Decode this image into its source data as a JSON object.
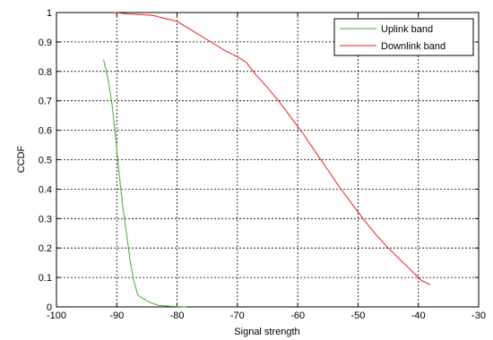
{
  "chart_data": {
    "type": "line",
    "title": "",
    "xlabel": "Signal strength",
    "ylabel": "CCDF",
    "xlim": [
      -100,
      -30
    ],
    "ylim": [
      0,
      1
    ],
    "xticks": [
      -100,
      -90,
      -80,
      -70,
      -60,
      -50,
      -40,
      -30
    ],
    "yticks": [
      0,
      0.1,
      0.2,
      0.3,
      0.4,
      0.5,
      0.6,
      0.7,
      0.8,
      0.9,
      1
    ],
    "xtick_labels": [
      "-100",
      "-90",
      "-80",
      "-70",
      "-60",
      "-50",
      "-40",
      "-30"
    ],
    "ytick_labels": [
      "0",
      "0.1",
      "0.2",
      "0.3",
      "0.4",
      "0.5",
      "0.6",
      "0.7",
      "0.8",
      "0.9",
      "1"
    ],
    "grid": true,
    "legend_position": "top-right",
    "series": [
      {
        "name": "Uplink band",
        "color": "#3fae2a",
        "x": [
          -92.2,
          -91.5,
          -90.8,
          -90.2,
          -89.6,
          -89.0,
          -88.4,
          -87.8,
          -87.2,
          -86.5,
          -85.8,
          -84.5,
          -83.0,
          -81.0,
          -78.5
        ],
        "y": [
          0.84,
          0.78,
          0.69,
          0.58,
          0.45,
          0.34,
          0.25,
          0.16,
          0.09,
          0.04,
          0.03,
          0.015,
          0.005,
          0.002,
          0.0
        ]
      },
      {
        "name": "Downlink band",
        "color": "#e8201e",
        "x": [
          -90.5,
          -88.0,
          -86.0,
          -84.0,
          -82.0,
          -80.0,
          -78.0,
          -76.0,
          -74.0,
          -72.0,
          -70.0,
          -68.5,
          -67.0,
          -65.0,
          -63.0,
          -61.0,
          -59.0,
          -57.0,
          -55.0,
          -53.0,
          -51.0,
          -49.0,
          -47.0,
          -45.0,
          -43.0,
          -41.0,
          -39.5,
          -38.0
        ],
        "y": [
          1.0,
          0.995,
          0.993,
          0.99,
          0.98,
          0.97,
          0.945,
          0.92,
          0.895,
          0.87,
          0.85,
          0.83,
          0.79,
          0.745,
          0.695,
          0.64,
          0.585,
          0.525,
          0.465,
          0.405,
          0.35,
          0.295,
          0.245,
          0.2,
          0.16,
          0.12,
          0.09,
          0.075
        ]
      }
    ]
  }
}
